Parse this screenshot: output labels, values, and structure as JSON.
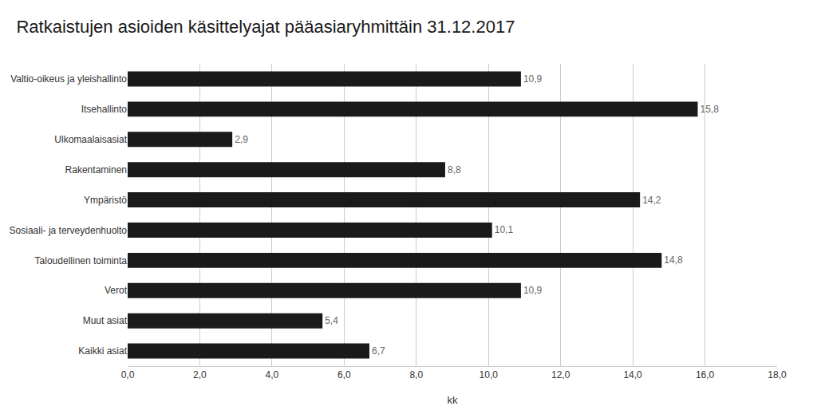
{
  "chart_data": {
    "type": "bar",
    "orientation": "horizontal",
    "title": "Ratkaistujen asioiden käsittelyajat pääasiaryhmittäin 31.12.2017",
    "xlabel": "kk",
    "categories": [
      "Kaikki asiat",
      "Muut asiat",
      "Verot",
      "Taloudellinen toiminta",
      "Sosiaali- ja terveydenhuolto",
      "Ympäristö",
      "Rakentaminen",
      "Ulkomaalaisasiat",
      "Itsehallinto",
      "Valtio-oikeus ja yleishallinto"
    ],
    "values": [
      6.7,
      5.4,
      10.9,
      14.8,
      10.1,
      14.2,
      8.8,
      2.9,
      15.8,
      10.9
    ],
    "value_labels": [
      "6,7",
      "5,4",
      "10,9",
      "14,8",
      "10,1",
      "14,2",
      "8,8",
      "2,9",
      "15,8",
      "10,9"
    ],
    "data_labels": true,
    "color": "#1a1a1a",
    "xlim": [
      0,
      18
    ],
    "xticks": [
      {
        "value": 0,
        "label": "0,0"
      },
      {
        "value": 2,
        "label": "2,0"
      },
      {
        "value": 4,
        "label": "4,0"
      },
      {
        "value": 6,
        "label": "6,0"
      },
      {
        "value": 8,
        "label": "8,0"
      },
      {
        "value": 10,
        "label": "10,0"
      },
      {
        "value": 12,
        "label": "12,0"
      },
      {
        "value": 14,
        "label": "14,0"
      },
      {
        "value": 16,
        "label": "16,0"
      },
      {
        "value": 18,
        "label": "18,0"
      }
    ],
    "grid": true
  }
}
